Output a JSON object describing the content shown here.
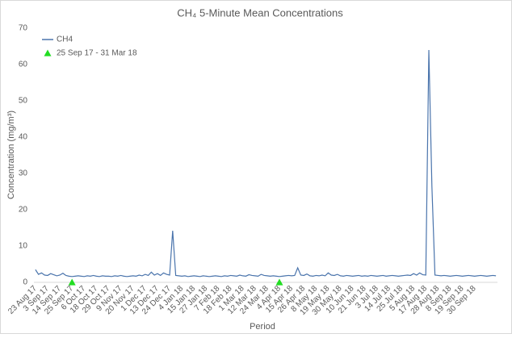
{
  "chart_data": {
    "type": "line",
    "title": "CH₄ 5-Minute Mean Concentrations",
    "x_label": "Period",
    "y_label": "Concentration (mg/m³)",
    "ylim": [
      0,
      70
    ],
    "yticks": [
      0,
      10,
      20,
      30,
      40,
      50,
      60,
      70
    ],
    "grid": false,
    "legend": "top-left",
    "categories": [
      "23 Aug 17",
      null,
      null,
      null,
      "3 Sep 17",
      null,
      null,
      null,
      "14 Sep 17",
      null,
      null,
      null,
      "25 Sep 17",
      null,
      null,
      null,
      "6 Oct 17",
      null,
      null,
      null,
      "18 Oct 17",
      null,
      null,
      null,
      "29 Oct 17",
      null,
      null,
      null,
      "9 Nov 17",
      null,
      null,
      null,
      "20 Nov 17",
      null,
      null,
      null,
      "1 Dec 17",
      null,
      null,
      null,
      "13 Dec 17",
      null,
      null,
      null,
      "24 Dec 17",
      null,
      null,
      null,
      "4 Jan 18",
      null,
      null,
      null,
      "15 Jan 18",
      null,
      null,
      null,
      "27 Jan 18",
      null,
      null,
      null,
      "7 Feb 18",
      null,
      null,
      null,
      "18 Feb 18",
      null,
      null,
      null,
      "1 Mar 18",
      null,
      null,
      null,
      "12 Mar 18",
      null,
      null,
      null,
      "24 Mar 18",
      null,
      null,
      null,
      "4 Apr 18",
      null,
      null,
      null,
      "15 Apr 18",
      null,
      null,
      null,
      "26 Apr 18",
      null,
      null,
      null,
      "8 May 18",
      null,
      null,
      null,
      "19 May 18",
      null,
      null,
      null,
      "30 May 18",
      null,
      null,
      null,
      "10 Jun 18",
      null,
      null,
      null,
      "21 Jun 18",
      null,
      null,
      null,
      "3 Jul 18",
      null,
      null,
      null,
      "14 Jul 18",
      null,
      null,
      null,
      "25 Jul 18",
      null,
      null,
      null,
      "5 Aug 18",
      null,
      null,
      null,
      "17 Aug 18",
      null,
      null,
      null,
      "28 Aug 18",
      null,
      null,
      null,
      "8 Sep 18",
      null,
      null,
      null,
      "19 Sep 18",
      null,
      null,
      null,
      "30 Sep 18",
      null,
      null,
      null,
      null,
      null,
      null,
      null
    ],
    "series": [
      {
        "name": "CH4",
        "color": "#4a74ac",
        "values": [
          3.5,
          2.2,
          2.6,
          2.0,
          1.9,
          2.4,
          2.1,
          1.8,
          2.0,
          2.5,
          1.9,
          1.7,
          1.6,
          1.7,
          1.8,
          1.7,
          1.6,
          1.8,
          1.7,
          1.9,
          1.7,
          1.6,
          1.8,
          1.7,
          1.7,
          1.6,
          1.8,
          1.7,
          1.9,
          1.7,
          1.6,
          1.7,
          1.8,
          1.7,
          2.0,
          1.8,
          2.2,
          1.9,
          2.8,
          2.0,
          2.4,
          1.9,
          2.6,
          2.2,
          2.0,
          14.2,
          1.9,
          1.8,
          1.7,
          1.8,
          1.6,
          1.7,
          1.8,
          1.7,
          1.6,
          1.8,
          1.7,
          1.6,
          1.7,
          1.8,
          1.7,
          1.6,
          1.8,
          1.7,
          1.9,
          1.8,
          1.7,
          2.0,
          1.8,
          1.7,
          2.1,
          1.9,
          1.8,
          1.7,
          2.2,
          1.9,
          1.8,
          1.7,
          1.8,
          1.7,
          1.6,
          1.7,
          1.8,
          1.9,
          1.8,
          1.9,
          4.0,
          2.0,
          1.9,
          2.3,
          1.8,
          1.7,
          1.9,
          1.8,
          2.0,
          1.8,
          2.6,
          2.0,
          1.9,
          2.2,
          1.8,
          1.7,
          1.9,
          1.8,
          1.7,
          1.8,
          1.9,
          1.7,
          1.8,
          1.7,
          1.9,
          1.8,
          1.7,
          1.8,
          1.9,
          1.7,
          1.8,
          1.9,
          1.8,
          1.7,
          1.8,
          1.9,
          2.0,
          1.9,
          2.4,
          2.0,
          2.6,
          2.1,
          2.0,
          64.0,
          26.5,
          2.0,
          1.9,
          1.8,
          1.9,
          1.8,
          1.7,
          1.8,
          1.9,
          1.8,
          1.7,
          1.8,
          1.9,
          1.8,
          1.7,
          1.8,
          1.9,
          1.8,
          1.7,
          1.8,
          1.9,
          1.8
        ]
      },
      {
        "name": "25 Sep 17 - 31 Mar 18",
        "color": "#22dd22",
        "marker": "triangle",
        "values": [
          null,
          null,
          null,
          null,
          null,
          null,
          null,
          null,
          null,
          null,
          null,
          null,
          0,
          null,
          null,
          null,
          null,
          null,
          null,
          null,
          null,
          null,
          null,
          null,
          null,
          null,
          null,
          null,
          null,
          null,
          null,
          null,
          null,
          null,
          null,
          null,
          null,
          null,
          null,
          null,
          null,
          null,
          null,
          null,
          null,
          null,
          null,
          null,
          null,
          null,
          null,
          null,
          null,
          null,
          null,
          null,
          null,
          null,
          null,
          null,
          null,
          null,
          null,
          null,
          null,
          null,
          null,
          null,
          null,
          null,
          null,
          null,
          null,
          null,
          null,
          null,
          null,
          null,
          null,
          null,
          0,
          null,
          null,
          null,
          null,
          null,
          null,
          null,
          null,
          null,
          null,
          null,
          null,
          null,
          null,
          null,
          null,
          null,
          null,
          null,
          null,
          null,
          null,
          null,
          null,
          null,
          null,
          null,
          null,
          null,
          null,
          null,
          null,
          null,
          null,
          null,
          null,
          null,
          null,
          null,
          null,
          null,
          null,
          null,
          null,
          null,
          null,
          null,
          null,
          null,
          null,
          null,
          null,
          null,
          null,
          null,
          null,
          null,
          null,
          null,
          null,
          null,
          null,
          null,
          null,
          null,
          null,
          null,
          null,
          null,
          null,
          null
        ]
      }
    ]
  }
}
